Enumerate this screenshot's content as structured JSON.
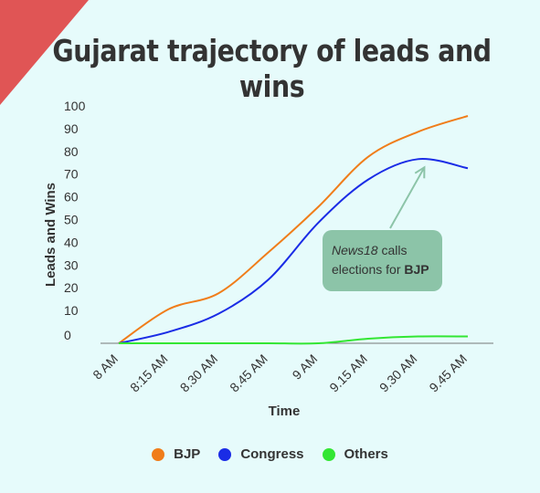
{
  "colors": {
    "background": "#e6fbfb",
    "corner": "#e05555",
    "bjp": "#f07d1a",
    "congress": "#1a2ce6",
    "others": "#33e633",
    "callout_bg": "#8cc4a8",
    "arrow": "#8cc4a8"
  },
  "callout": {
    "italic": "News18",
    "text1": " calls",
    "text2": "elections for ",
    "bold": "BJP"
  },
  "chart_data": {
    "type": "line",
    "title": "Gujarat trajectory of leads and wins",
    "xlabel": "Time",
    "ylabel": "Leads and Wins",
    "categories": [
      "8 AM",
      "8:15 AM",
      "8.30 AM",
      "8.45 AM",
      "9 AM",
      "9.15 AM",
      "9.30 AM",
      "9.45 AM"
    ],
    "yticks": [
      0,
      10,
      20,
      30,
      40,
      50,
      60,
      70,
      80,
      90,
      100
    ],
    "ylim": [
      0,
      100
    ],
    "grid": false,
    "legend": "bottom",
    "series": [
      {
        "name": "BJP",
        "color": "#f07d1a",
        "values": [
          0,
          15,
          22,
          40,
          60,
          82,
          93,
          100
        ]
      },
      {
        "name": "Congress",
        "color": "#1a2ce6",
        "values": [
          0,
          5,
          13,
          28,
          53,
          72,
          81,
          77
        ]
      },
      {
        "name": "Others",
        "color": "#33e633",
        "values": [
          0,
          0,
          0,
          0,
          0,
          2,
          3,
          3
        ]
      }
    ],
    "annotation": {
      "target_category": "9.30 AM",
      "target_series": "Congress"
    }
  }
}
